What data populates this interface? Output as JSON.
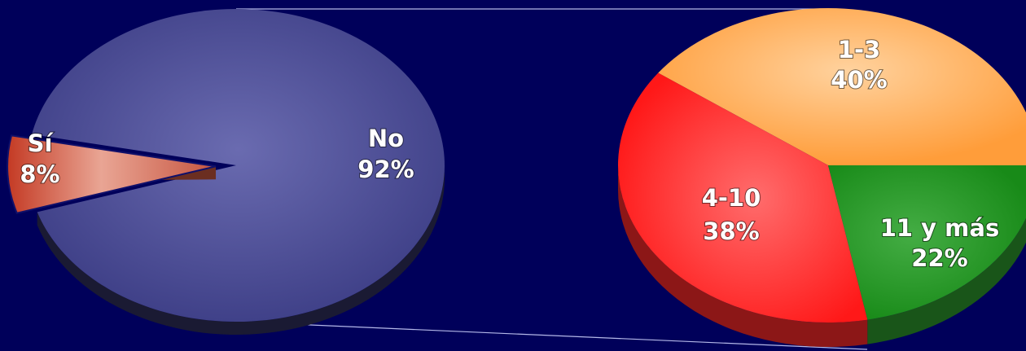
{
  "chart_data": [
    {
      "type": "pie",
      "title": "",
      "slices": [
        {
          "name": "No",
          "label": "No",
          "pct_label": "92%",
          "value": 92,
          "color": "#4a4b92",
          "exploded": false
        },
        {
          "name": "Sí",
          "label": "Sí",
          "pct_label": "8%",
          "value": 8,
          "color": "#c2533c",
          "exploded": true
        }
      ]
    },
    {
      "type": "pie",
      "title": "",
      "slices": [
        {
          "name": "1-3",
          "label": "1-3",
          "pct_label": "40%",
          "value": 40,
          "color": "#ffb060"
        },
        {
          "name": "4-10",
          "label": "4-10",
          "pct_label": "38%",
          "value": 38,
          "color": "#ff2a2a"
        },
        {
          "name": "11 y más",
          "label": "11 y más",
          "pct_label": "22%",
          "value": 22,
          "color": "#2e9b2e"
        }
      ]
    }
  ]
}
